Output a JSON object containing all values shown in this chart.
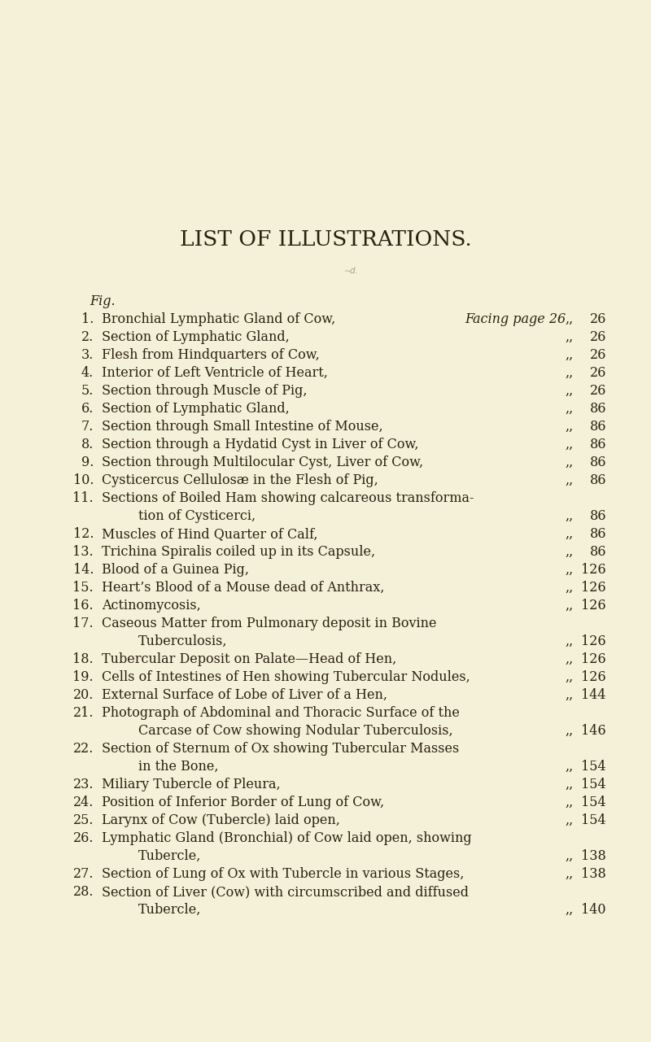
{
  "background_color": "#f5f0d8",
  "title": "LIST OF ILLUSTRATIONS.",
  "title_fontsize": 19,
  "fig_label": "Fig.",
  "facing_page_text": "Facing page 26",
  "entries": [
    {
      "num": "1.",
      "text": "Bronchial Lymphatic Gland of Cow,",
      "dots": true,
      "page": "26",
      "facing": true
    },
    {
      "num": "2.",
      "text": "Section of Lymphatic Gland,",
      "dots": true,
      "page": "26",
      "facing": false
    },
    {
      "num": "3.",
      "text": "Flesh from Hindquarters of Cow,",
      "dots": true,
      "page": "26",
      "facing": false
    },
    {
      "num": "4.",
      "text": "Interior of Left Ventricle of Heart,",
      "dots": true,
      "page": "26",
      "facing": false
    },
    {
      "num": "5.",
      "text": "Section through Muscle of Pig,",
      "dots": true,
      "page": "26",
      "facing": false
    },
    {
      "num": "6.",
      "text": "Section of Lymphatic Gland,",
      "dots": true,
      "page": "86",
      "facing": false
    },
    {
      "num": "7.",
      "text": "Section through Small Intestine of Mouse,",
      "dots": true,
      "page": "86",
      "facing": false
    },
    {
      "num": "8.",
      "text": "Section through a Hydatid Cyst in Liver of Cow,",
      "dots": true,
      "page": "86",
      "facing": false
    },
    {
      "num": "9.",
      "text": "Section through Multilocular Cyst, Liver of Cow,",
      "dots": true,
      "page": "86",
      "facing": false
    },
    {
      "num": "10.",
      "text": "Cysticercus Cellulosæ in the Flesh of Pig,",
      "dots": true,
      "page": "86",
      "facing": false
    },
    {
      "num": "11.",
      "text": "Sections of Boiled Ham showing calcareous transforma-",
      "dots": false,
      "page": "",
      "facing": false,
      "continuation": "tion of Cysticerci,",
      "cont_dots": true,
      "cont_page": "86"
    },
    {
      "num": "12.",
      "text": "Muscles of Hind Quarter of Calf,",
      "dots": true,
      "page": "86",
      "facing": false
    },
    {
      "num": "13.",
      "text": "Trichina Spiralis coiled up in its Capsule,",
      "dots": true,
      "page": "86",
      "facing": false
    },
    {
      "num": "14.",
      "text": "Blood of a Guinea Pig,",
      "dots": true,
      "page": "126",
      "facing": false
    },
    {
      "num": "15.",
      "text": "Heart’s Blood of a Mouse dead of Anthrax,",
      "dots": true,
      "page": "126",
      "facing": false
    },
    {
      "num": "16.",
      "text": "Actinomycosis,",
      "dots": true,
      "page": "126",
      "facing": false
    },
    {
      "num": "17.",
      "text": "Caseous Matter from Pulmonary deposit in Bovine",
      "dots": false,
      "page": "",
      "facing": false,
      "continuation": "Tuberculosis,",
      "cont_dots": true,
      "cont_page": "126"
    },
    {
      "num": "18.",
      "text": "Tubercular Deposit on Palate—Head of Hen,",
      "dots": true,
      "page": "126",
      "facing": false
    },
    {
      "num": "19.",
      "text": "Cells of Intestines of Hen showing Tubercular Nodules,",
      "dots": true,
      "page": "126",
      "facing": false
    },
    {
      "num": "20.",
      "text": "External Surface of Lobe of Liver of a Hen,",
      "dots": true,
      "page": "144",
      "facing": false
    },
    {
      "num": "21.",
      "text": "Photograph of Abdominal and Thoracic Surface of the",
      "dots": false,
      "page": "",
      "facing": false,
      "continuation": "Carcase of Cow showing Nodular Tuberculosis,",
      "cont_dots": true,
      "cont_page": "146"
    },
    {
      "num": "22.",
      "text": "Section of Sternum of Ox showing Tubercular Masses",
      "dots": false,
      "page": "",
      "facing": false,
      "continuation": "in the Bone,",
      "cont_dots": true,
      "cont_page": "154"
    },
    {
      "num": "23.",
      "text": "Miliary Tubercle of Pleura,",
      "dots": true,
      "page": "154",
      "facing": false
    },
    {
      "num": "24.",
      "text": "Position of Inferior Border of Lung of Cow,",
      "dots": true,
      "page": "154",
      "facing": false
    },
    {
      "num": "25.",
      "text": "Larynx of Cow (Tubercle) laid open,",
      "dots": true,
      "page": "154",
      "facing": false
    },
    {
      "num": "26.",
      "text": "Lymphatic Gland (Bronchial) of Cow laid open, showing",
      "dots": false,
      "page": "",
      "facing": false,
      "continuation": "Tubercle,",
      "cont_dots": true,
      "cont_page": "138"
    },
    {
      "num": "27.",
      "text": "Section of Lung of Ox with Tubercle in various Stages,",
      "dots": true,
      "page": "138",
      "facing": false
    },
    {
      "num": "28.",
      "text": "Section of Liver (Cow) with circumscribed and diffused",
      "dots": false,
      "page": "",
      "facing": false,
      "continuation": "Tubercle,",
      "cont_dots": true,
      "cont_page": "140"
    }
  ]
}
